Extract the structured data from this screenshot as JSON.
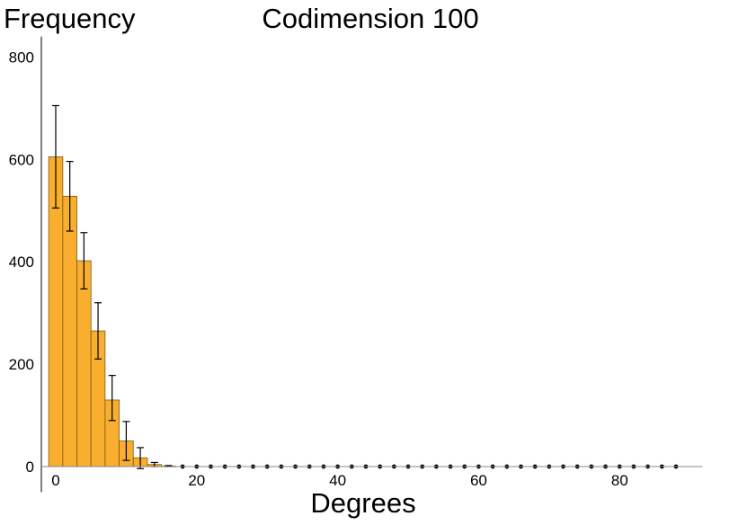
{
  "chart_data": {
    "type": "bar",
    "title": "Codimension 100",
    "ylabel": "Frequency",
    "xlabel": "Degrees",
    "bin_width": 2,
    "x": [
      0,
      2,
      4,
      6,
      8,
      10,
      12,
      14,
      16,
      18,
      20,
      22,
      24,
      26,
      28,
      30,
      32,
      34,
      36,
      38,
      40,
      42,
      44,
      46,
      48,
      50,
      52,
      54,
      56,
      58,
      60,
      62,
      64,
      66,
      68,
      70,
      72,
      74,
      76,
      78,
      80,
      82,
      84,
      86,
      88
    ],
    "values": [
      605,
      528,
      402,
      265,
      130,
      50,
      17,
      4,
      1,
      0,
      0,
      0,
      0,
      0,
      0,
      0,
      0,
      0,
      0,
      0,
      0,
      0,
      0,
      0,
      0,
      0,
      0,
      0,
      0,
      0,
      0,
      0,
      0,
      0,
      0,
      0,
      0,
      0,
      0,
      0,
      0,
      0,
      0,
      0,
      0
    ],
    "error_low": [
      505,
      460,
      347,
      210,
      90,
      12,
      -4,
      0,
      0,
      0,
      0,
      0,
      0,
      0,
      0,
      0,
      0,
      0,
      0,
      0,
      0,
      0,
      0,
      0,
      0,
      0,
      0,
      0,
      0,
      0,
      0,
      0,
      0,
      0,
      0,
      0,
      0,
      0,
      0,
      0,
      0,
      0,
      0,
      0,
      0
    ],
    "error_high": [
      705,
      596,
      457,
      320,
      178,
      88,
      37,
      8,
      2,
      0,
      0,
      0,
      0,
      0,
      0,
      0,
      0,
      0,
      0,
      0,
      0,
      0,
      0,
      0,
      0,
      0,
      0,
      0,
      0,
      0,
      0,
      0,
      0,
      0,
      0,
      0,
      0,
      0,
      0,
      0,
      0,
      0,
      0,
      0,
      0
    ],
    "xlim": [
      -2,
      92
    ],
    "ylim": [
      -50,
      840
    ],
    "xticks": [
      0,
      20,
      40,
      60,
      80
    ],
    "yticks": [
      0,
      200,
      400,
      600,
      800
    ],
    "grid": false,
    "bar_color": "#F9AE2D",
    "bar_edge_color": "#7a5a1a"
  }
}
